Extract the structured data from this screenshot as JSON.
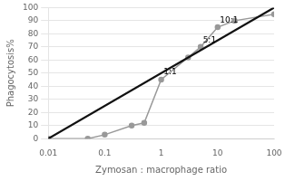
{
  "chart_data": {
    "type": "line",
    "xlabel": "Zymosan : macrophage ratio",
    "ylabel": "Phagocytosis%",
    "log": "x",
    "xlim": [
      0.01,
      100
    ],
    "xticks": [
      0.01,
      0.1,
      1,
      10,
      100
    ],
    "ylim": [
      0,
      100
    ],
    "yticks": [
      0,
      10,
      20,
      30,
      40,
      50,
      60,
      70,
      80,
      90,
      100
    ],
    "grid": "y",
    "series": [
      {
        "x": [
          0.01,
          100
        ],
        "values": [
          0,
          100
        ],
        "color": "#111111",
        "marker": "none"
      },
      {
        "x": [
          0.01,
          0.05,
          0.1,
          0.3,
          0.5,
          1.0,
          3.0,
          5.0,
          10.0,
          20.0,
          100.0
        ],
        "values": [
          0,
          0,
          3,
          10,
          12,
          45,
          62,
          70,
          85,
          90,
          95
        ],
        "color": "#999999",
        "marker": "o"
      }
    ],
    "annotations": [
      {
        "x": 1.1,
        "y": 48,
        "text": "1:1"
      },
      {
        "x": 5.5,
        "y": 72,
        "text": "5:1"
      },
      {
        "x": 11.0,
        "y": 87,
        "text": "10:1"
      }
    ]
  }
}
